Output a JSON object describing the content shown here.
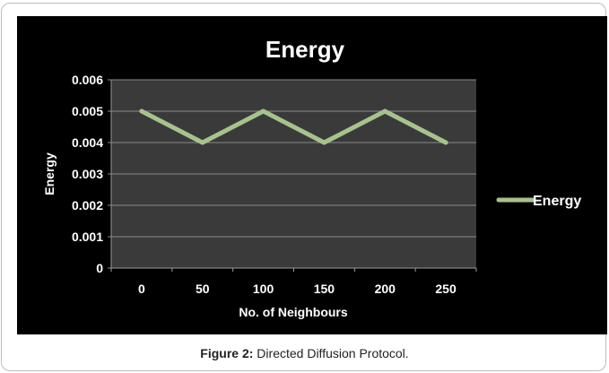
{
  "chart_data": {
    "type": "line",
    "title": "Energy",
    "xlabel": "No. of Neighbours",
    "ylabel": "Energy",
    "categories": [
      "0",
      "50",
      "100",
      "150",
      "200",
      "250"
    ],
    "ylim": [
      0,
      0.006
    ],
    "yticks": [
      "0",
      "0.001",
      "0.002",
      "0.003",
      "0.004",
      "0.005",
      "0.006"
    ],
    "series": [
      {
        "name": "Energy",
        "values": [
          0.005,
          0.004,
          0.005,
          0.004,
          0.005,
          0.004
        ]
      }
    ],
    "grid": true,
    "legend": "right",
    "colors": {
      "background": "#000000",
      "plot_background": "#3a3a3a",
      "line": "#a7c38c",
      "text": "#ffffff",
      "grid": "#8a8a8a"
    }
  },
  "caption": {
    "label": "Figure 2:",
    "text": " Directed Diffusion Protocol."
  }
}
